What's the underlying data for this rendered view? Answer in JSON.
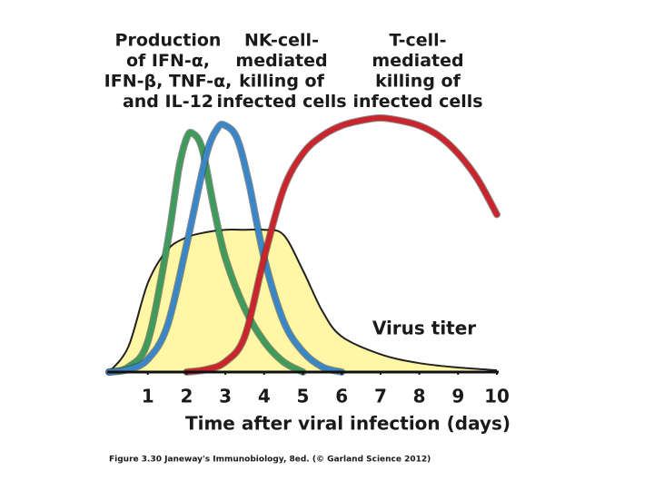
{
  "chart_data": {
    "type": "line",
    "annotations": [
      [
        "Production",
        "of IFN-α,",
        "IFN-β, TNF-α,",
        "and IL-12"
      ],
      [
        "NK-cell-",
        "mediated",
        "killing of",
        "infected cells"
      ],
      [
        "T-cell-",
        "mediated",
        "killing of",
        "infected cells"
      ]
    ],
    "xlabel": "Time after viral infection (days)",
    "xlim": [
      0,
      10
    ],
    "xticks": [
      1,
      2,
      3,
      4,
      5,
      6,
      7,
      8,
      9,
      10
    ],
    "ylim": [
      0,
      100
    ],
    "grid": false,
    "series": [
      {
        "name": "Virus titer",
        "color": "#fff6a6",
        "filled": true,
        "x": [
          0,
          0.5,
          1,
          1.5,
          2,
          2.5,
          3,
          3.5,
          4,
          4.5,
          5,
          5.5,
          6,
          7,
          8,
          9,
          10
        ],
        "values": [
          0,
          10,
          35,
          48,
          53,
          55,
          56,
          56,
          56,
          54,
          40,
          24,
          14,
          7,
          3.5,
          1.8,
          0.7
        ]
      },
      {
        "color": "#3f9a5c",
        "x": [
          0,
          0.5,
          1,
          1.5,
          1.8,
          2,
          2.15,
          2.4,
          2.7,
          3,
          3.5,
          4,
          4.5,
          5
        ],
        "values": [
          0,
          2,
          12,
          50,
          80,
          92,
          94,
          88,
          65,
          45,
          25,
          12,
          4,
          0
        ]
      },
      {
        "color": "#3a86c6",
        "x": [
          0,
          0.5,
          1,
          1.5,
          2,
          2.5,
          2.8,
          3,
          3.3,
          3.6,
          4,
          4.5,
          5,
          5.5,
          6
        ],
        "values": [
          0,
          1,
          5,
          18,
          50,
          85,
          96,
          97,
          92,
          75,
          45,
          20,
          8,
          2,
          0
        ]
      },
      {
        "color": "#c9252d",
        "x": [
          2,
          2.5,
          3,
          3.5,
          4,
          4.5,
          5,
          5.5,
          6,
          6.5,
          7,
          7.5,
          8,
          8.5,
          9,
          9.5,
          10
        ],
        "values": [
          0,
          1,
          4,
          14,
          45,
          72,
          86,
          93,
          97,
          99,
          100,
          99,
          97,
          93,
          86,
          76,
          62
        ]
      }
    ]
  },
  "caption": "Figure 3.30 Janeway's Immunobiology, 8ed. (© Garland Science 2012)"
}
